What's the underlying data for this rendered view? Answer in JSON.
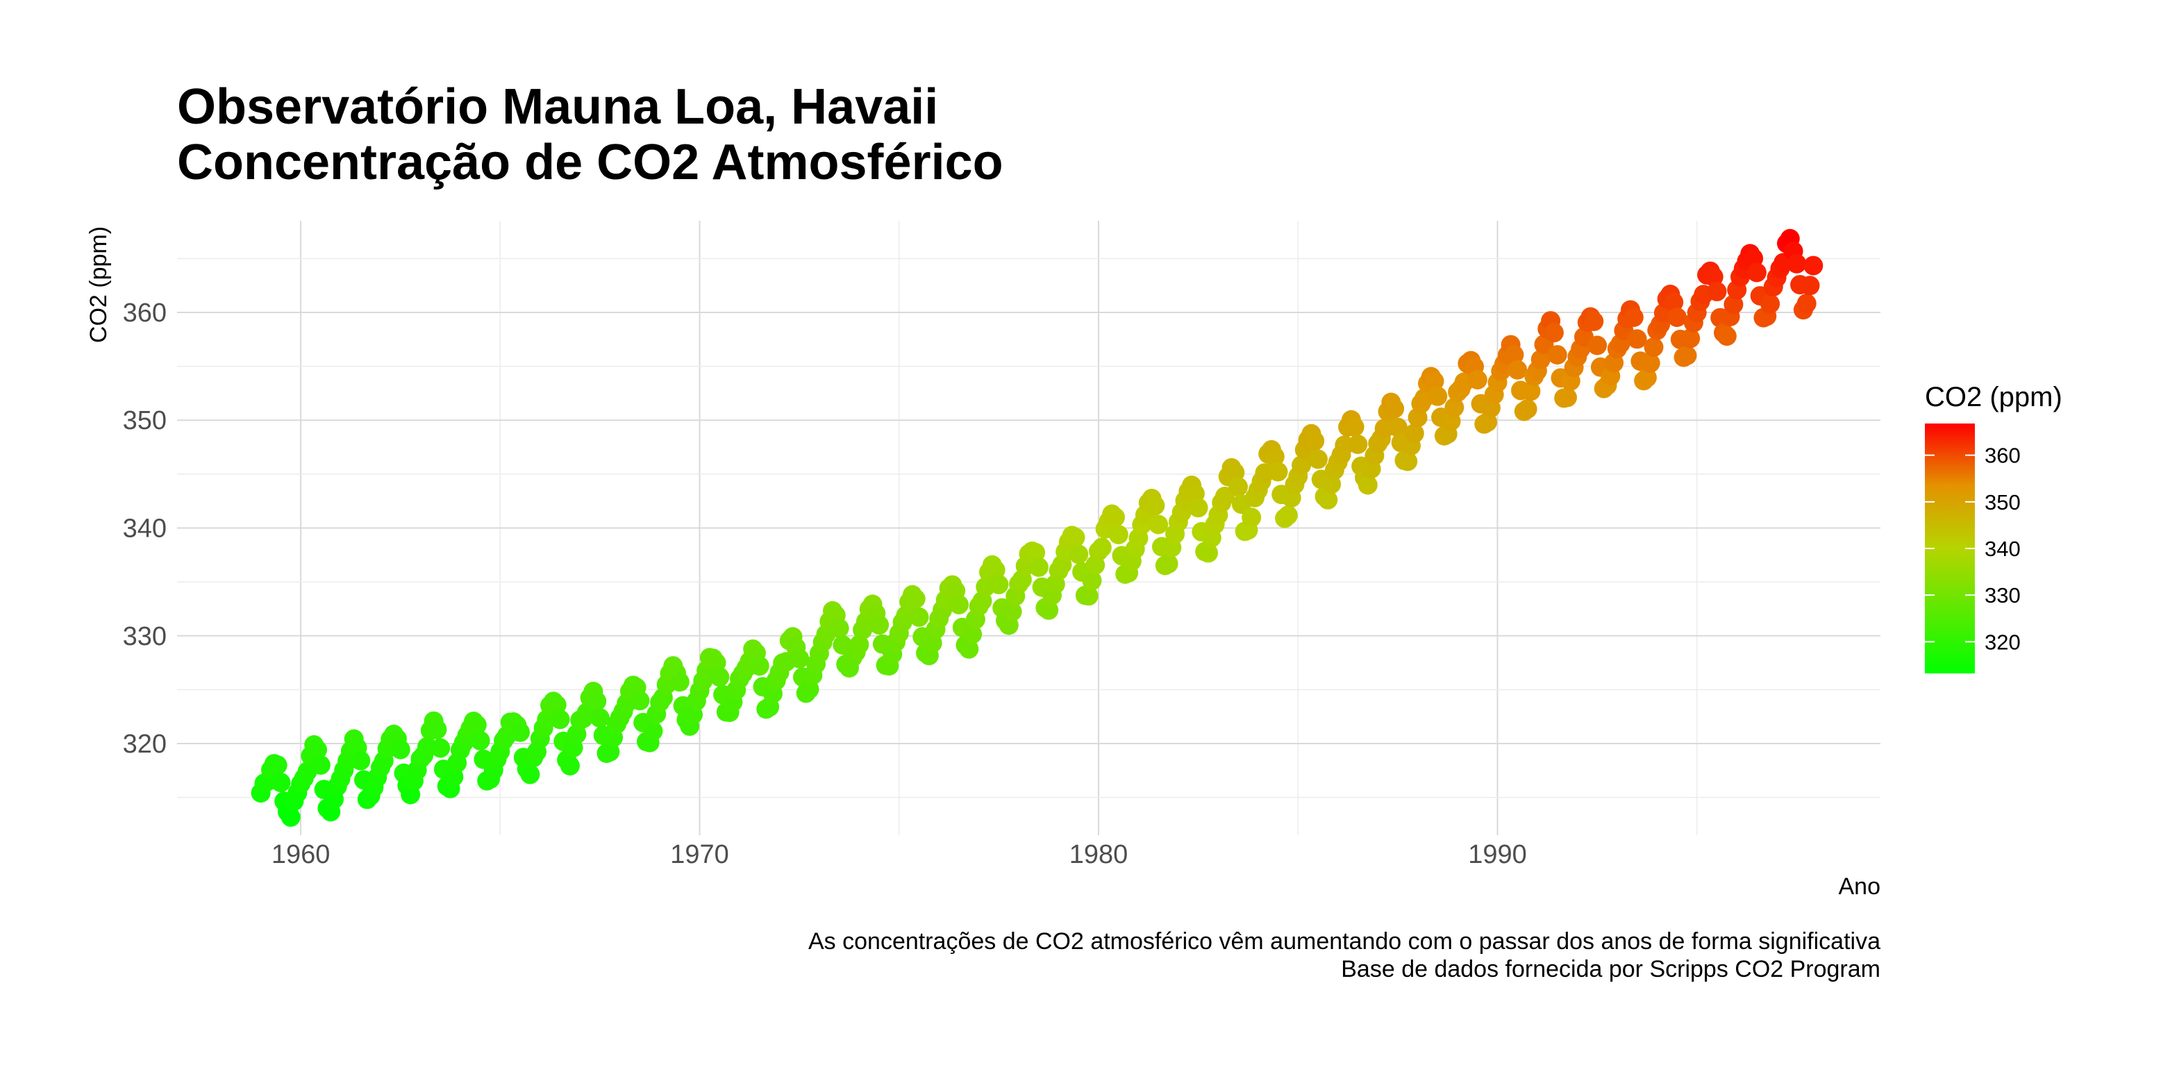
{
  "chart_data": {
    "type": "scatter",
    "title": [
      "Observatório Mauna Loa, Havaii",
      "Concentração de CO2 Atmosférico"
    ],
    "xlabel": "Ano",
    "ylabel": "CO2 (ppm)",
    "caption": [
      "As concentrações de CO2 atmosférico vêm aumentando com o passar dos anos de forma significativa",
      "Base de dados fornecida por Scripps CO2 Program"
    ],
    "xlim": [
      1956.9,
      1999.6
    ],
    "ylim": [
      311.5,
      368.5
    ],
    "x_ticks": [
      "1960",
      "1970",
      "1980",
      "1990"
    ],
    "x_tick_values": [
      1960,
      1970,
      1980,
      1990
    ],
    "y_ticks": [
      "320",
      "330",
      "340",
      "350",
      "360"
    ],
    "y_tick_values": [
      320,
      330,
      340,
      350,
      360
    ],
    "grid": true,
    "legend": {
      "title": "CO2 (ppm)",
      "position": "right",
      "range": [
        313.2,
        366.8
      ],
      "ticks": [
        "360",
        "350",
        "340",
        "330",
        "320"
      ],
      "tick_values": [
        360,
        350,
        340,
        330,
        320
      ],
      "colors": [
        "#00ff00",
        "#ffff00",
        "#ff0000"
      ]
    },
    "series": [
      {
        "x_start": 1959.0,
        "x_step": 0.083333,
        "values": [
          315.42,
          316.31,
          316.5,
          317.56,
          318.13,
          318.0,
          316.39,
          314.65,
          313.68,
          313.18,
          314.66,
          315.43,
          316.27,
          316.81,
          317.42,
          318.87,
          319.87,
          319.43,
          318.01,
          315.74,
          314.0,
          313.68,
          314.84,
          316.03,
          316.73,
          317.54,
          318.38,
          319.31,
          320.42,
          319.61,
          318.42,
          316.63,
          314.83,
          315.16,
          315.94,
          316.85,
          317.78,
          318.4,
          319.53,
          320.42,
          320.85,
          320.45,
          319.45,
          317.25,
          316.11,
          315.27,
          316.53,
          317.53,
          318.58,
          318.92,
          319.7,
          321.22,
          322.08,
          321.31,
          319.58,
          317.61,
          316.05,
          315.83,
          316.91,
          318.2,
          319.41,
          320.07,
          320.74,
          321.4,
          322.06,
          321.73,
          320.27,
          318.54,
          316.54,
          316.71,
          317.53,
          318.55,
          319.27,
          320.28,
          320.73,
          321.97,
          322.0,
          321.71,
          321.05,
          318.71,
          317.66,
          317.14,
          318.7,
          319.25,
          320.46,
          321.43,
          322.23,
          323.54,
          323.91,
          323.59,
          322.24,
          320.2,
          318.48,
          317.94,
          319.63,
          320.87,
          322.17,
          322.34,
          322.88,
          324.25,
          324.83,
          323.93,
          322.38,
          320.76,
          319.1,
          319.24,
          320.56,
          321.8,
          322.4,
          322.99,
          323.73,
          324.86,
          325.4,
          325.2,
          323.98,
          321.95,
          320.18,
          320.09,
          321.16,
          322.74,
          323.83,
          324.26,
          325.47,
          326.5,
          327.21,
          326.54,
          325.72,
          323.5,
          322.22,
          321.62,
          322.69,
          323.95,
          324.89,
          325.82,
          326.77,
          327.97,
          327.91,
          327.5,
          326.18,
          324.53,
          322.93,
          322.9,
          323.85,
          324.96,
          326.01,
          326.51,
          327.01,
          327.62,
          328.76,
          328.4,
          327.2,
          325.27,
          323.2,
          323.4,
          324.63,
          325.85,
          326.6,
          327.47,
          327.58,
          329.56,
          329.9,
          328.92,
          327.88,
          326.16,
          324.68,
          325.04,
          326.34,
          327.39,
          328.37,
          329.4,
          330.14,
          331.33,
          332.31,
          331.9,
          330.7,
          329.15,
          327.35,
          327.02,
          327.99,
          328.48,
          329.18,
          330.55,
          331.32,
          332.48,
          332.92,
          332.08,
          331.01,
          329.23,
          327.27,
          327.21,
          328.29,
          329.41,
          330.23,
          331.25,
          331.87,
          333.14,
          333.8,
          333.43,
          331.73,
          329.9,
          328.4,
          328.17,
          329.32,
          330.59,
          331.58,
          332.39,
          333.33,
          334.41,
          334.71,
          334.17,
          332.89,
          330.77,
          329.14,
          328.78,
          330.14,
          331.52,
          332.75,
          333.24,
          334.53,
          335.9,
          336.57,
          336.1,
          334.76,
          332.59,
          331.42,
          330.98,
          332.24,
          333.68,
          334.8,
          335.22,
          336.47,
          337.59,
          337.84,
          337.72,
          336.37,
          334.51,
          332.6,
          332.38,
          333.75,
          334.78,
          336.05,
          336.59,
          337.79,
          338.71,
          339.3,
          339.12,
          337.56,
          335.92,
          333.75,
          333.7,
          335.12,
          336.56,
          337.84,
          338.19,
          339.91,
          340.6,
          341.29,
          341.0,
          339.39,
          337.43,
          335.72,
          335.84,
          336.93,
          338.04,
          339.06,
          340.3,
          341.21,
          342.33,
          342.74,
          342.08,
          340.32,
          338.26,
          336.52,
          336.68,
          338.19,
          339.44,
          340.57,
          341.44,
          342.53,
          343.39,
          343.96,
          343.18,
          341.88,
          339.65,
          337.81,
          337.69,
          339.09,
          340.32,
          341.2,
          342.35,
          342.93,
          344.77,
          345.58,
          345.14,
          343.81,
          342.21,
          339.69,
          339.82,
          340.98,
          342.82,
          343.52,
          344.33,
          345.11,
          346.88,
          347.25,
          346.62,
          345.22,
          343.11,
          340.9,
          341.18,
          342.8,
          344.04,
          344.79,
          345.82,
          347.25,
          348.17,
          348.74,
          348.07,
          346.38,
          344.51,
          342.92,
          342.62,
          344.06,
          345.38,
          346.11,
          346.78,
          347.68,
          349.37,
          350.03,
          349.37,
          347.76,
          345.73,
          344.68,
          343.99,
          345.48,
          346.72,
          347.84,
          348.29,
          349.23,
          350.8,
          351.66,
          351.07,
          349.33,
          347.92,
          346.27,
          346.18,
          347.64,
          348.78,
          350.25,
          351.54,
          352.05,
          353.41,
          354.04,
          353.62,
          352.22,
          350.27,
          348.55,
          348.72,
          349.91,
          351.18,
          352.6,
          352.92,
          353.53,
          355.26,
          355.52,
          354.97,
          353.75,
          351.52,
          349.64,
          349.83,
          351.14,
          352.37,
          353.5,
          354.55,
          355.23,
          356.04,
          357.0,
          356.07,
          354.67,
          352.76,
          350.82,
          351.04,
          352.69,
          354.07,
          354.59,
          355.63,
          357.03,
          358.48,
          359.22,
          358.12,
          356.06,
          353.92,
          352.05,
          352.11,
          353.64,
          354.89,
          355.88,
          356.63,
          357.72,
          359.07,
          359.58,
          359.17,
          356.94,
          354.92,
          352.94,
          353.23,
          354.09,
          355.33,
          356.63,
          357.1,
          358.32,
          359.41,
          360.23,
          359.55,
          357.53,
          355.48,
          353.67,
          353.95,
          355.3,
          356.78,
          358.34,
          358.89,
          359.95,
          361.25,
          361.67,
          360.94,
          359.55,
          357.49,
          355.84,
          356.0,
          357.59,
          359.05,
          359.98,
          361.03,
          361.66,
          363.48,
          363.82,
          363.3,
          361.94,
          359.5,
          358.11,
          357.8,
          359.61,
          360.74,
          362.09,
          363.29,
          364.06,
          364.76,
          365.45,
          365.01,
          363.7,
          361.54,
          359.51,
          359.65,
          360.8,
          362.38,
          363.23,
          364.06,
          364.61,
          366.4,
          366.84,
          365.68,
          364.52,
          362.57,
          360.24,
          360.83,
          362.49,
          364.34
        ]
      }
    ]
  }
}
